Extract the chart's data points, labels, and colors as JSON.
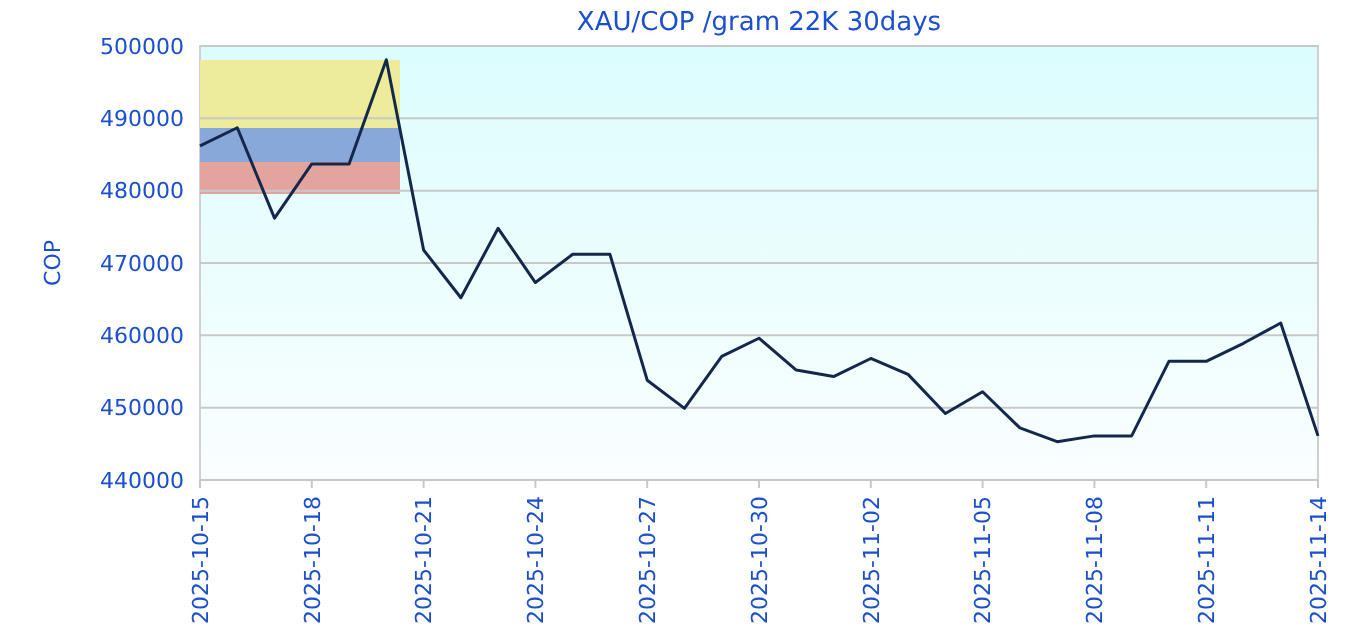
{
  "chart_data": {
    "type": "line",
    "title": "XAU/COP /gram 22K 30days",
    "ylabel": "COP",
    "x": [
      "2025-10-15",
      "2025-10-16",
      "2025-10-17",
      "2025-10-18",
      "2025-10-19",
      "2025-10-20",
      "2025-10-21",
      "2025-10-22",
      "2025-10-23",
      "2025-10-24",
      "2025-10-25",
      "2025-10-26",
      "2025-10-27",
      "2025-10-28",
      "2025-10-29",
      "2025-10-30",
      "2025-10-31",
      "2025-11-01",
      "2025-11-02",
      "2025-11-03",
      "2025-11-04",
      "2025-11-05",
      "2025-11-06",
      "2025-11-07",
      "2025-11-08",
      "2025-11-09",
      "2025-11-10",
      "2025-11-11",
      "2025-11-12",
      "2025-11-13",
      "2025-11-14"
    ],
    "series": [
      {
        "color": "#14284b",
        "values": [
          486200,
          488700,
          476200,
          483700,
          483700,
          498100,
          471800,
          465200,
          474800,
          467300,
          471200,
          471200,
          453800,
          449900,
          457100,
          459600,
          455200,
          454300,
          456800,
          454600,
          449200,
          452200,
          447200,
          445300,
          446100,
          446100,
          456400,
          456400,
          458900,
          461700,
          446100
        ]
      }
    ],
    "xlim": [
      "2025-10-15",
      "2025-11-14"
    ],
    "xticks": [
      "2025-10-15",
      "2025-10-18",
      "2025-10-21",
      "2025-10-24",
      "2025-10-27",
      "2025-10-30",
      "2025-11-02",
      "2025-11-05",
      "2025-11-08",
      "2025-11-11",
      "2025-11-14"
    ],
    "ylim": [
      440000,
      500000
    ],
    "yticks": [
      440000,
      450000,
      460000,
      470000,
      480000,
      490000,
      500000
    ],
    "grid": "y",
    "marker": "none",
    "line_style": "solid"
  }
}
